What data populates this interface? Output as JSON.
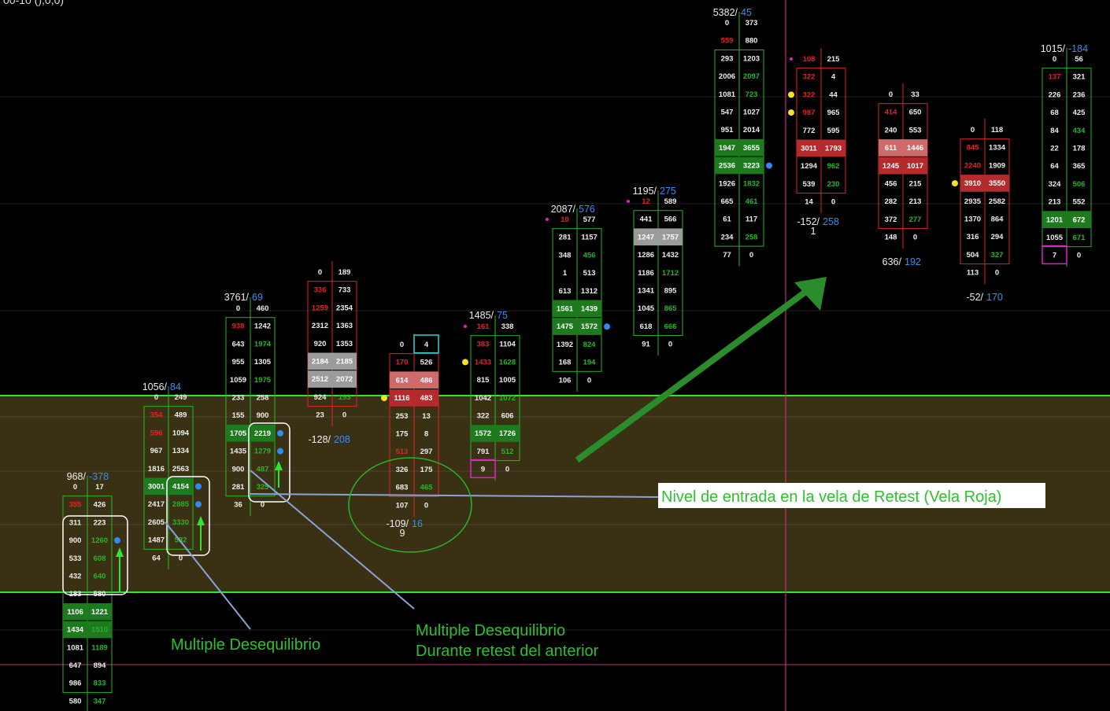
{
  "header": {
    "corner_text": "00-10 (),0,0)"
  },
  "colors": {
    "bg": "#000000",
    "zone": "#3a3115",
    "zone_line": "#2fe52f",
    "grid": "#6e6e6e",
    "time_line": "#c0307a",
    "ask": "#27b527",
    "bid": "#e02525",
    "neutral": "#eeeeee",
    "delta_pos": "#3a8ef0",
    "green_cell": "#1d7a1d",
    "red_cell": "#b52a2a",
    "light_red_cell": "#cf6a6a",
    "grey_cell": "#9b9b9b",
    "arrow": "#2a8c2a",
    "pointer": "#8aa2d6",
    "label_text": "#2ec02e"
  },
  "chart_data": {
    "type": "footprint",
    "title": "",
    "candles": [
      {
        "id": "c1",
        "summary": {
          "volume": "968",
          "delta": "-378"
        },
        "color": "green",
        "rows": [
          {
            "bid": "0",
            "ask": "17"
          },
          {
            "bid": "355",
            "ask": "426",
            "bc": "red"
          },
          {
            "bid": "311",
            "ask": "223"
          },
          {
            "bid": "900",
            "ask": "1260",
            "ac": "green",
            "dot": "blue"
          },
          {
            "bid": "533",
            "ask": "608",
            "ac": "green"
          },
          {
            "bid": "432",
            "ask": "640",
            "ac": "green"
          },
          {
            "bid": "183",
            "ask": "580"
          },
          {
            "bid": "1106",
            "ask": "1221",
            "hl": "green"
          },
          {
            "bid": "1434",
            "ask": "1510",
            "hl": "green",
            "ac": "green"
          },
          {
            "bid": "1081",
            "ask": "1189",
            "ac": "green"
          },
          {
            "bid": "647",
            "ask": "894"
          },
          {
            "bid": "986",
            "ask": "833",
            "ac": "green"
          },
          {
            "bid": "580",
            "ask": "347",
            "ac": "green"
          }
        ]
      },
      {
        "id": "c2",
        "summary": {
          "volume": "1056",
          "delta": "84"
        },
        "color": "green",
        "rows": [
          {
            "bid": "0",
            "ask": "249"
          },
          {
            "bid": "354",
            "ask": "489",
            "bc": "red"
          },
          {
            "bid": "596",
            "ask": "1094",
            "bc": "red"
          },
          {
            "bid": "967",
            "ask": "1334"
          },
          {
            "bid": "1816",
            "ask": "2563"
          },
          {
            "bid": "3001",
            "ask": "4154",
            "hl": "green",
            "dot": "blue"
          },
          {
            "bid": "2417",
            "ask": "2885",
            "ac": "green",
            "dot": "blue"
          },
          {
            "bid": "2605",
            "ask": "3330",
            "ac": "green"
          },
          {
            "bid": "1487",
            "ask": "582",
            "ac": "green"
          },
          {
            "bid": "64",
            "ask": "0"
          }
        ]
      },
      {
        "id": "c3",
        "summary": {
          "volume": "3761",
          "delta": "69"
        },
        "color": "green",
        "rows": [
          {
            "bid": "0",
            "ask": "460"
          },
          {
            "bid": "938",
            "ask": "1242",
            "bc": "red"
          },
          {
            "bid": "643",
            "ask": "1974",
            "ac": "green"
          },
          {
            "bid": "955",
            "ask": "1305"
          },
          {
            "bid": "1059",
            "ask": "1975",
            "ac": "green"
          },
          {
            "bid": "233",
            "ask": "258"
          },
          {
            "bid": "155",
            "ask": "900"
          },
          {
            "bid": "1705",
            "ask": "2219",
            "hl": "green",
            "dot": "blue"
          },
          {
            "bid": "1435",
            "ask": "1279",
            "ac": "green",
            "dot": "blue"
          },
          {
            "bid": "900",
            "ask": "487",
            "ac": "green"
          },
          {
            "bid": "281",
            "ask": "325",
            "ac": "green"
          },
          {
            "bid": "36",
            "ask": "0"
          }
        ]
      },
      {
        "id": "c4",
        "summary": {
          "volume": "-128",
          "delta": "208"
        },
        "color": "red",
        "rows": [
          {
            "bid": "0",
            "ask": "189"
          },
          {
            "bid": "336",
            "ask": "733",
            "bc": "red"
          },
          {
            "bid": "1259",
            "ask": "2354",
            "bc": "red"
          },
          {
            "bid": "2312",
            "ask": "1363"
          },
          {
            "bid": "920",
            "ask": "1353"
          },
          {
            "bid": "2184",
            "ask": "2185",
            "hl": "grey"
          },
          {
            "bid": "2512",
            "ask": "2072",
            "hl": "grey"
          },
          {
            "bid": "924",
            "ask": "193",
            "ac": "green"
          },
          {
            "bid": "23",
            "ask": "0"
          }
        ]
      },
      {
        "id": "c5",
        "summary": {
          "volume": "-109 9",
          "delta": "16"
        },
        "color": "red",
        "rows": [
          {
            "bid": "0",
            "ask": "4",
            "box": "ask"
          },
          {
            "bid": "170",
            "ask": "526",
            "bc": "red"
          },
          {
            "bid": "614",
            "ask": "486",
            "hl": "lightred"
          },
          {
            "bid": "1116",
            "ask": "483",
            "hl": "red",
            "dot": "yellow"
          },
          {
            "bid": "253",
            "ask": "13"
          },
          {
            "bid": "175",
            "ask": "8"
          },
          {
            "bid": "513",
            "ask": "297",
            "bc": "red"
          },
          {
            "bid": "326",
            "ask": "175"
          },
          {
            "bid": "683",
            "ask": "465",
            "ac": "green"
          },
          {
            "bid": "107",
            "ask": "0"
          }
        ]
      },
      {
        "id": "c6",
        "summary": {
          "volume": "1485",
          "delta": "75"
        },
        "color": "green",
        "rows": [
          {
            "bid": "161",
            "ask": "338",
            "bc": "red",
            "pre": "magenta"
          },
          {
            "bid": "383",
            "ask": "1104",
            "bc": "red"
          },
          {
            "bid": "1433",
            "ask": "1628",
            "bc": "red",
            "ac": "green",
            "dot": "yellow"
          },
          {
            "bid": "815",
            "ask": "1005"
          },
          {
            "bid": "1042",
            "ask": "1072",
            "ac": "green"
          },
          {
            "bid": "322",
            "ask": "606"
          },
          {
            "bid": "1572",
            "ask": "1726",
            "hl": "green"
          },
          {
            "bid": "791",
            "ask": "512",
            "ac": "green"
          },
          {
            "bid": "9",
            "ask": "0",
            "box": "bid"
          }
        ]
      },
      {
        "id": "c7",
        "summary": {
          "volume": "2087",
          "delta": "576"
        },
        "color": "green",
        "rows": [
          {
            "bid": "10",
            "ask": "577",
            "bc": "red",
            "pre": "magenta"
          },
          {
            "bid": "281",
            "ask": "1157"
          },
          {
            "bid": "348",
            "ask": "456",
            "ac": "green"
          },
          {
            "bid": "1",
            "ask": "513"
          },
          {
            "bid": "613",
            "ask": "1312"
          },
          {
            "bid": "1561",
            "ask": "1439",
            "hl": "green"
          },
          {
            "bid": "1475",
            "ask": "1572",
            "hl": "green",
            "dot": "blue"
          },
          {
            "bid": "1392",
            "ask": "824",
            "ac": "green"
          },
          {
            "bid": "168",
            "ask": "194",
            "ac": "green"
          },
          {
            "bid": "106",
            "ask": "0"
          }
        ]
      },
      {
        "id": "c8",
        "summary": {
          "volume": "1195",
          "delta": "275"
        },
        "color": "green",
        "rows": [
          {
            "bid": "12",
            "ask": "589",
            "bc": "red",
            "pre": "magenta"
          },
          {
            "bid": "441",
            "ask": "566"
          },
          {
            "bid": "1247",
            "ask": "1757",
            "hl": "grey"
          },
          {
            "bid": "1286",
            "ask": "1432"
          },
          {
            "bid": "1186",
            "ask": "1712",
            "ac": "green"
          },
          {
            "bid": "1341",
            "ask": "895"
          },
          {
            "bid": "1045",
            "ask": "865",
            "ac": "green"
          },
          {
            "bid": "618",
            "ask": "666",
            "ac": "green"
          },
          {
            "bid": "91",
            "ask": "0"
          }
        ]
      },
      {
        "id": "c9",
        "summary": {
          "volume": "5382",
          "delta": "45"
        },
        "color": "green",
        "rows": [
          {
            "bid": "0",
            "ask": "373"
          },
          {
            "bid": "559",
            "ask": "880",
            "bc": "red"
          },
          {
            "bid": "293",
            "ask": "1203"
          },
          {
            "bid": "2006",
            "ask": "2097",
            "ac": "green"
          },
          {
            "bid": "1081",
            "ask": "723",
            "ac": "green"
          },
          {
            "bid": "547",
            "ask": "1027"
          },
          {
            "bid": "951",
            "ask": "2014"
          },
          {
            "bid": "1947",
            "ask": "3655",
            "hl": "green"
          },
          {
            "bid": "2536",
            "ask": "3223",
            "hl": "green",
            "dot": "blue"
          },
          {
            "bid": "1926",
            "ask": "1832",
            "ac": "green"
          },
          {
            "bid": "665",
            "ask": "461",
            "ac": "green"
          },
          {
            "bid": "61",
            "ask": "117"
          },
          {
            "bid": "234",
            "ask": "258",
            "ac": "green"
          },
          {
            "bid": "77",
            "ask": "0"
          }
        ]
      },
      {
        "id": "c10",
        "summary": {
          "volume": "-152 1",
          "delta": "258"
        },
        "color": "red",
        "rows": [
          {
            "bid": "108",
            "ask": "215",
            "bc": "red",
            "pre": "magenta"
          },
          {
            "bid": "322",
            "ask": "4",
            "bc": "red"
          },
          {
            "bid": "322",
            "ask": "44",
            "bc": "red",
            "dot": "yellow"
          },
          {
            "bid": "987",
            "ask": "965",
            "bc": "red",
            "dot": "yellow"
          },
          {
            "bid": "772",
            "ask": "595"
          },
          {
            "bid": "3011",
            "ask": "1793",
            "hl": "red"
          },
          {
            "bid": "1294",
            "ask": "962",
            "ac": "green"
          },
          {
            "bid": "539",
            "ask": "230",
            "ac": "green"
          },
          {
            "bid": "14",
            "ask": "0"
          }
        ]
      },
      {
        "id": "c11",
        "summary": {
          "volume": "636",
          "delta": "192"
        },
        "color": "red",
        "rows": [
          {
            "bid": "0",
            "ask": "33"
          },
          {
            "bid": "414",
            "ask": "650",
            "bc": "red"
          },
          {
            "bid": "240",
            "ask": "553"
          },
          {
            "bid": "611",
            "ask": "1446",
            "hl": "lightred"
          },
          {
            "bid": "1245",
            "ask": "1017",
            "hl": "red"
          },
          {
            "bid": "456",
            "ask": "215"
          },
          {
            "bid": "282",
            "ask": "213"
          },
          {
            "bid": "372",
            "ask": "277",
            "ac": "green"
          },
          {
            "bid": "148",
            "ask": "0"
          }
        ]
      },
      {
        "id": "c12",
        "summary": {
          "volume": "-52",
          "delta": "170"
        },
        "color": "red",
        "rows": [
          {
            "bid": "0",
            "ask": "118"
          },
          {
            "bid": "845",
            "ask": "1334",
            "bc": "red"
          },
          {
            "bid": "2240",
            "ask": "1909",
            "bc": "red"
          },
          {
            "bid": "3910",
            "ask": "3550",
            "hl": "red",
            "dot": "yellow"
          },
          {
            "bid": "2935",
            "ask": "2582"
          },
          {
            "bid": "1370",
            "ask": "864"
          },
          {
            "bid": "316",
            "ask": "294"
          },
          {
            "bid": "504",
            "ask": "327",
            "ac": "green"
          },
          {
            "bid": "113",
            "ask": "0"
          }
        ]
      },
      {
        "id": "c13",
        "summary": {
          "volume": "1015",
          "delta": "-184"
        },
        "color": "green",
        "rows": [
          {
            "bid": "0",
            "ask": "56"
          },
          {
            "bid": "137",
            "ask": "321",
            "bc": "red"
          },
          {
            "bid": "226",
            "ask": "236"
          },
          {
            "bid": "68",
            "ask": "425"
          },
          {
            "bid": "84",
            "ask": "434",
            "ac": "green"
          },
          {
            "bid": "22",
            "ask": "178"
          },
          {
            "bid": "64",
            "ask": "365"
          },
          {
            "bid": "324",
            "ask": "506",
            "ac": "green"
          },
          {
            "bid": "213",
            "ask": "552"
          },
          {
            "bid": "1201",
            "ask": "672",
            "hl": "green"
          },
          {
            "bid": "1055",
            "ask": "671",
            "ac": "green"
          },
          {
            "bid": "7",
            "ask": "0",
            "box": "bid"
          }
        ]
      }
    ]
  },
  "annotations": {
    "label_entry": "Nivel de entrada en la vela de Retest (Vela Roja)",
    "label_multi_1": "Multiple Desequilibrio",
    "label_multi_2_line1": "Multiple Desequilibrio",
    "label_multi_2_line2": "Durante retest del anterior"
  }
}
